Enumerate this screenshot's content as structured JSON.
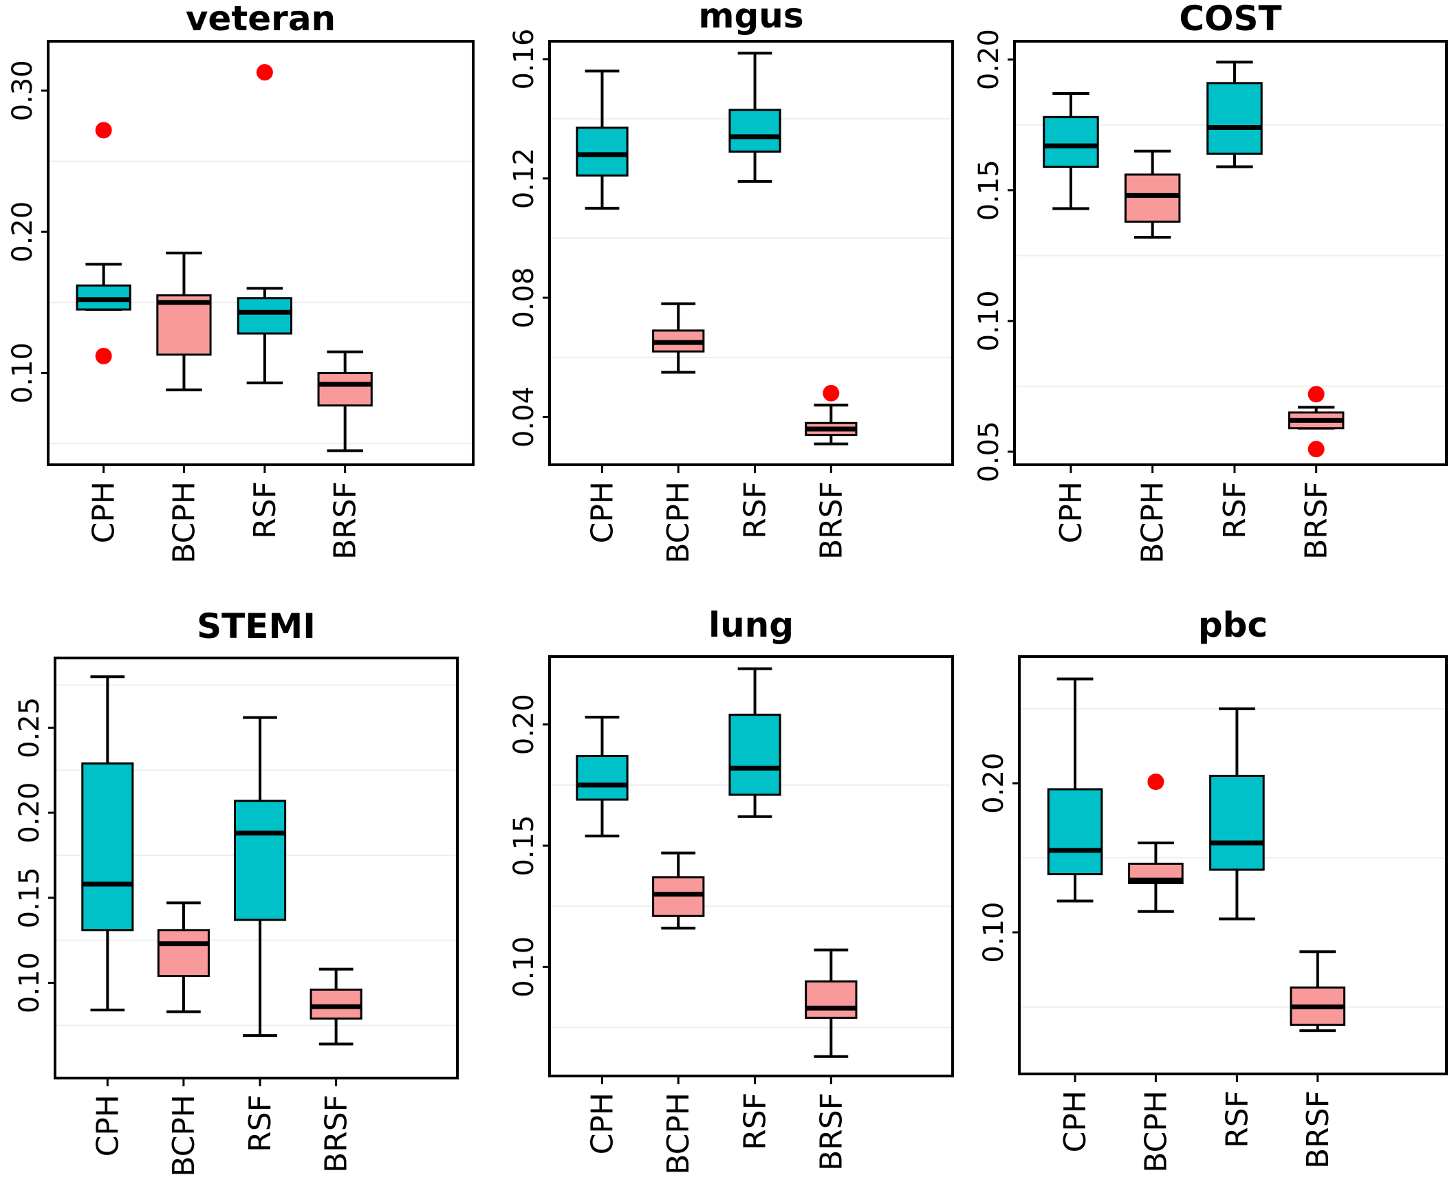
{
  "figure": {
    "boxplot_colors": {
      "CPH": "#00C0C8",
      "BCPH": "#F89A9A",
      "RSF": "#00C0C8",
      "BRSF": "#F89A9A"
    },
    "outlier_color": "#FF0000",
    "grid_color": "#eeeeee"
  },
  "chart_data": [
    {
      "type": "boxplot",
      "title": "veteran",
      "categories": [
        "CPH",
        "BCPH",
        "RSF",
        "BRSF"
      ],
      "ylim": [
        0.035,
        0.335
      ],
      "yticks": [
        0.1,
        0.2,
        0.3
      ],
      "ytick_labels": [
        "0.10",
        "0.20",
        "0.30"
      ],
      "grid": [
        0.05,
        0.15,
        0.25
      ],
      "boxes": [
        {
          "category": "CPH",
          "whislo": 0.145,
          "q1": 0.145,
          "med": 0.152,
          "q3": 0.162,
          "whishi": 0.177,
          "outliers": [
            0.272,
            0.112
          ]
        },
        {
          "category": "BCPH",
          "whislo": 0.088,
          "q1": 0.113,
          "med": 0.15,
          "q3": 0.155,
          "whishi": 0.185,
          "outliers": []
        },
        {
          "category": "RSF",
          "whislo": 0.093,
          "q1": 0.128,
          "med": 0.143,
          "q3": 0.153,
          "whishi": 0.16,
          "outliers": [
            0.313
          ]
        },
        {
          "category": "BRSF",
          "whislo": 0.045,
          "q1": 0.077,
          "med": 0.092,
          "q3": 0.1,
          "whishi": 0.115,
          "outliers": []
        }
      ]
    },
    {
      "type": "boxplot",
      "title": "mgus",
      "categories": [
        "CPH",
        "BCPH",
        "RSF",
        "BRSF"
      ],
      "ylim": [
        0.024,
        0.166
      ],
      "yticks": [
        0.04,
        0.08,
        0.12,
        0.16
      ],
      "ytick_labels": [
        "0.04",
        "0.08",
        "0.12",
        "0.16"
      ],
      "grid": [
        0.06,
        0.1,
        0.14
      ],
      "boxes": [
        {
          "category": "CPH",
          "whislo": 0.11,
          "q1": 0.121,
          "med": 0.128,
          "q3": 0.137,
          "whishi": 0.156,
          "outliers": []
        },
        {
          "category": "BCPH",
          "whislo": 0.055,
          "q1": 0.062,
          "med": 0.065,
          "q3": 0.069,
          "whishi": 0.078,
          "outliers": []
        },
        {
          "category": "RSF",
          "whislo": 0.119,
          "q1": 0.129,
          "med": 0.134,
          "q3": 0.143,
          "whishi": 0.162,
          "outliers": []
        },
        {
          "category": "BRSF",
          "whislo": 0.031,
          "q1": 0.034,
          "med": 0.036,
          "q3": 0.038,
          "whishi": 0.044,
          "outliers": [
            0.048
          ]
        }
      ]
    },
    {
      "type": "boxplot",
      "title": "COST",
      "categories": [
        "CPH",
        "BCPH",
        "RSF",
        "BRSF"
      ],
      "ylim": [
        0.045,
        0.207
      ],
      "yticks": [
        0.05,
        0.1,
        0.15,
        0.2
      ],
      "ytick_labels": [
        "0.05",
        "0.10",
        "0.15",
        "0.20"
      ],
      "grid": [
        0.075,
        0.125,
        0.175
      ],
      "boxes": [
        {
          "category": "CPH",
          "whislo": 0.143,
          "q1": 0.159,
          "med": 0.167,
          "q3": 0.178,
          "whishi": 0.187,
          "outliers": []
        },
        {
          "category": "BCPH",
          "whislo": 0.132,
          "q1": 0.138,
          "med": 0.148,
          "q3": 0.156,
          "whishi": 0.165,
          "outliers": []
        },
        {
          "category": "RSF",
          "whislo": 0.159,
          "q1": 0.164,
          "med": 0.174,
          "q3": 0.191,
          "whishi": 0.199,
          "outliers": []
        },
        {
          "category": "BRSF",
          "whislo": 0.059,
          "q1": 0.059,
          "med": 0.062,
          "q3": 0.065,
          "whishi": 0.067,
          "outliers": [
            0.072,
            0.051
          ]
        }
      ]
    },
    {
      "type": "boxplot",
      "title": "STEMI",
      "categories": [
        "CPH",
        "BCPH",
        "RSF",
        "BRSF"
      ],
      "ylim": [
        0.044,
        0.291
      ],
      "yticks": [
        0.1,
        0.15,
        0.2,
        0.25
      ],
      "ytick_labels": [
        "0.10",
        "0.15",
        "0.20",
        "0.25"
      ],
      "grid": [
        0.075,
        0.125,
        0.175,
        0.225,
        0.275
      ],
      "boxes": [
        {
          "category": "CPH",
          "whislo": 0.084,
          "q1": 0.131,
          "med": 0.158,
          "q3": 0.229,
          "whishi": 0.28,
          "outliers": []
        },
        {
          "category": "BCPH",
          "whislo": 0.083,
          "q1": 0.104,
          "med": 0.123,
          "q3": 0.131,
          "whishi": 0.147,
          "outliers": []
        },
        {
          "category": "RSF",
          "whislo": 0.069,
          "q1": 0.137,
          "med": 0.188,
          "q3": 0.207,
          "whishi": 0.256,
          "outliers": []
        },
        {
          "category": "BRSF",
          "whislo": 0.064,
          "q1": 0.079,
          "med": 0.086,
          "q3": 0.096,
          "whishi": 0.108,
          "outliers": []
        }
      ]
    },
    {
      "type": "boxplot",
      "title": "lung",
      "categories": [
        "CPH",
        "BCPH",
        "RSF",
        "BRSF"
      ],
      "ylim": [
        0.055,
        0.228
      ],
      "yticks": [
        0.1,
        0.15,
        0.2
      ],
      "ytick_labels": [
        "0.10",
        "0.15",
        "0.20"
      ],
      "grid": [
        0.075,
        0.125,
        0.175
      ],
      "boxes": [
        {
          "category": "CPH",
          "whislo": 0.154,
          "q1": 0.169,
          "med": 0.175,
          "q3": 0.187,
          "whishi": 0.203,
          "outliers": []
        },
        {
          "category": "BCPH",
          "whislo": 0.116,
          "q1": 0.121,
          "med": 0.13,
          "q3": 0.137,
          "whishi": 0.147,
          "outliers": []
        },
        {
          "category": "RSF",
          "whislo": 0.162,
          "q1": 0.171,
          "med": 0.182,
          "q3": 0.204,
          "whishi": 0.223,
          "outliers": []
        },
        {
          "category": "BRSF",
          "whislo": 0.063,
          "q1": 0.079,
          "med": 0.083,
          "q3": 0.094,
          "whishi": 0.107,
          "outliers": []
        }
      ]
    },
    {
      "type": "boxplot",
      "title": "pbc",
      "categories": [
        "CPH",
        "BCPH",
        "RSF",
        "BRSF"
      ],
      "ylim": [
        0.005,
        0.285
      ],
      "yticks": [
        0.1,
        0.2
      ],
      "ytick_labels": [
        "0.10",
        "0.20"
      ],
      "grid": [
        0.05,
        0.15,
        0.25
      ],
      "boxes": [
        {
          "category": "CPH",
          "whislo": 0.121,
          "q1": 0.139,
          "med": 0.155,
          "q3": 0.196,
          "whishi": 0.27,
          "outliers": []
        },
        {
          "category": "BCPH",
          "whislo": 0.114,
          "q1": 0.133,
          "med": 0.135,
          "q3": 0.146,
          "whishi": 0.16,
          "outliers": [
            0.201
          ]
        },
        {
          "category": "RSF",
          "whislo": 0.109,
          "q1": 0.142,
          "med": 0.16,
          "q3": 0.205,
          "whishi": 0.25,
          "outliers": []
        },
        {
          "category": "BRSF",
          "whislo": 0.034,
          "q1": 0.038,
          "med": 0.05,
          "q3": 0.063,
          "whishi": 0.087,
          "outliers": []
        }
      ]
    }
  ]
}
